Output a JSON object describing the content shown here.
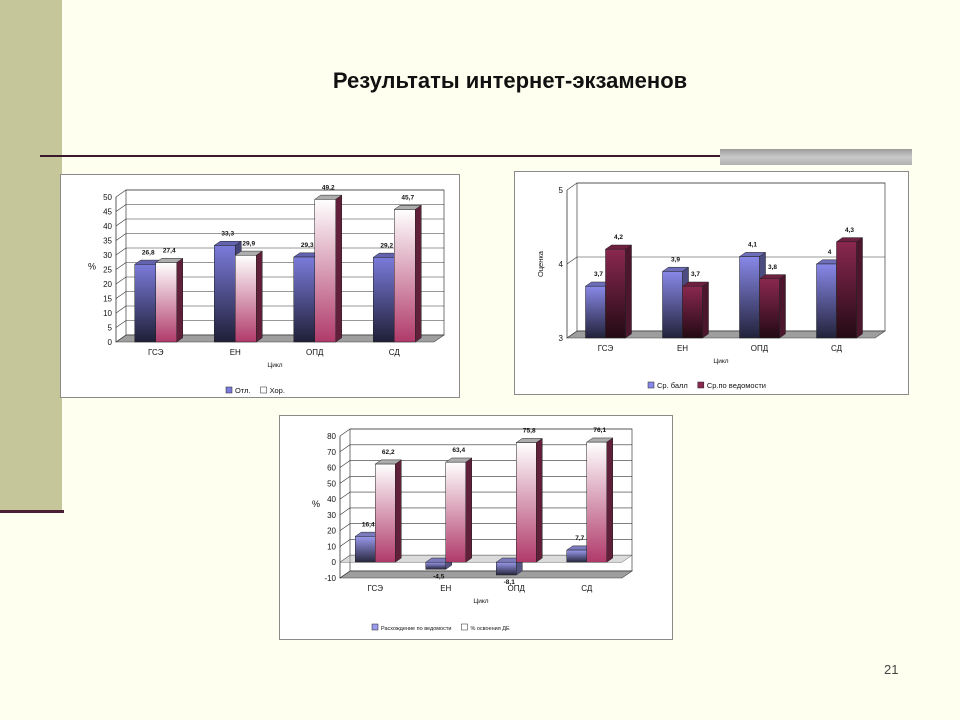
{
  "slide": {
    "title": "Результаты интернет-экзаменов",
    "page_number": "21"
  },
  "chart_data": [
    {
      "type": "bar",
      "categories": [
        "ГСЭ",
        "ЕН",
        "ОПД",
        "СД"
      ],
      "series": [
        {
          "name": "Отл.",
          "values": [
            26.8,
            33.3,
            29.3,
            29.2
          ],
          "labels": [
            "26,8",
            "33,3",
            "29,3",
            "29,2"
          ],
          "color": "#7b7bdb"
        },
        {
          "name": "Хор.",
          "values": [
            27.4,
            29.9,
            49.2,
            45.7
          ],
          "labels": [
            "27,4",
            "29,9",
            "49,2",
            "45,7"
          ],
          "color": "#ffffff"
        }
      ],
      "xlabel": "Цикл",
      "ylabel": "%",
      "ylim": [
        0,
        50
      ],
      "yticks": [
        0,
        5,
        10,
        15,
        20,
        25,
        30,
        35,
        40,
        45,
        50
      ],
      "grid": true,
      "legend": "bottom"
    },
    {
      "type": "bar",
      "categories": [
        "ГСЭ",
        "ЕН",
        "ОПД",
        "СД"
      ],
      "series": [
        {
          "name": "Ср. балл",
          "values": [
            3.7,
            3.9,
            4.1,
            4.0
          ],
          "labels": [
            "3,7",
            "3,9",
            "4,1",
            "4"
          ],
          "color": "#8888e8"
        },
        {
          "name": "Ср.по ведомости",
          "values": [
            4.2,
            3.7,
            3.8,
            4.3
          ],
          "labels": [
            "4,2",
            "3,7",
            "3,8",
            "4,3"
          ],
          "color": "#8a2850"
        }
      ],
      "xlabel": "Цикл",
      "ylabel": "Оценка",
      "ylim": [
        3,
        5
      ],
      "yticks": [
        3,
        4,
        5
      ],
      "grid": true,
      "legend": "bottom"
    },
    {
      "type": "bar",
      "categories": [
        "ГСЭ",
        "ЕН",
        "ОПД",
        "СД"
      ],
      "series": [
        {
          "name": "Расхождение по ведомости",
          "values": [
            16.4,
            -4.5,
            -8.1,
            7.7
          ],
          "labels": [
            "16,4",
            "-4,5",
            "-8,1",
            "7,7"
          ],
          "color": "#9a9aee"
        },
        {
          "name": "% освоения ДЕ",
          "values": [
            62.2,
            63.4,
            75.8,
            76.1
          ],
          "labels": [
            "62,2",
            "63,4",
            "75,8",
            "76,1"
          ],
          "color": "#ffffff"
        }
      ],
      "xlabel": "Цикл",
      "ylabel": "%",
      "ylim": [
        -10,
        80
      ],
      "yticks": [
        -10,
        0,
        10,
        20,
        30,
        40,
        50,
        60,
        70,
        80
      ],
      "grid": true,
      "legend": "bottom"
    }
  ]
}
